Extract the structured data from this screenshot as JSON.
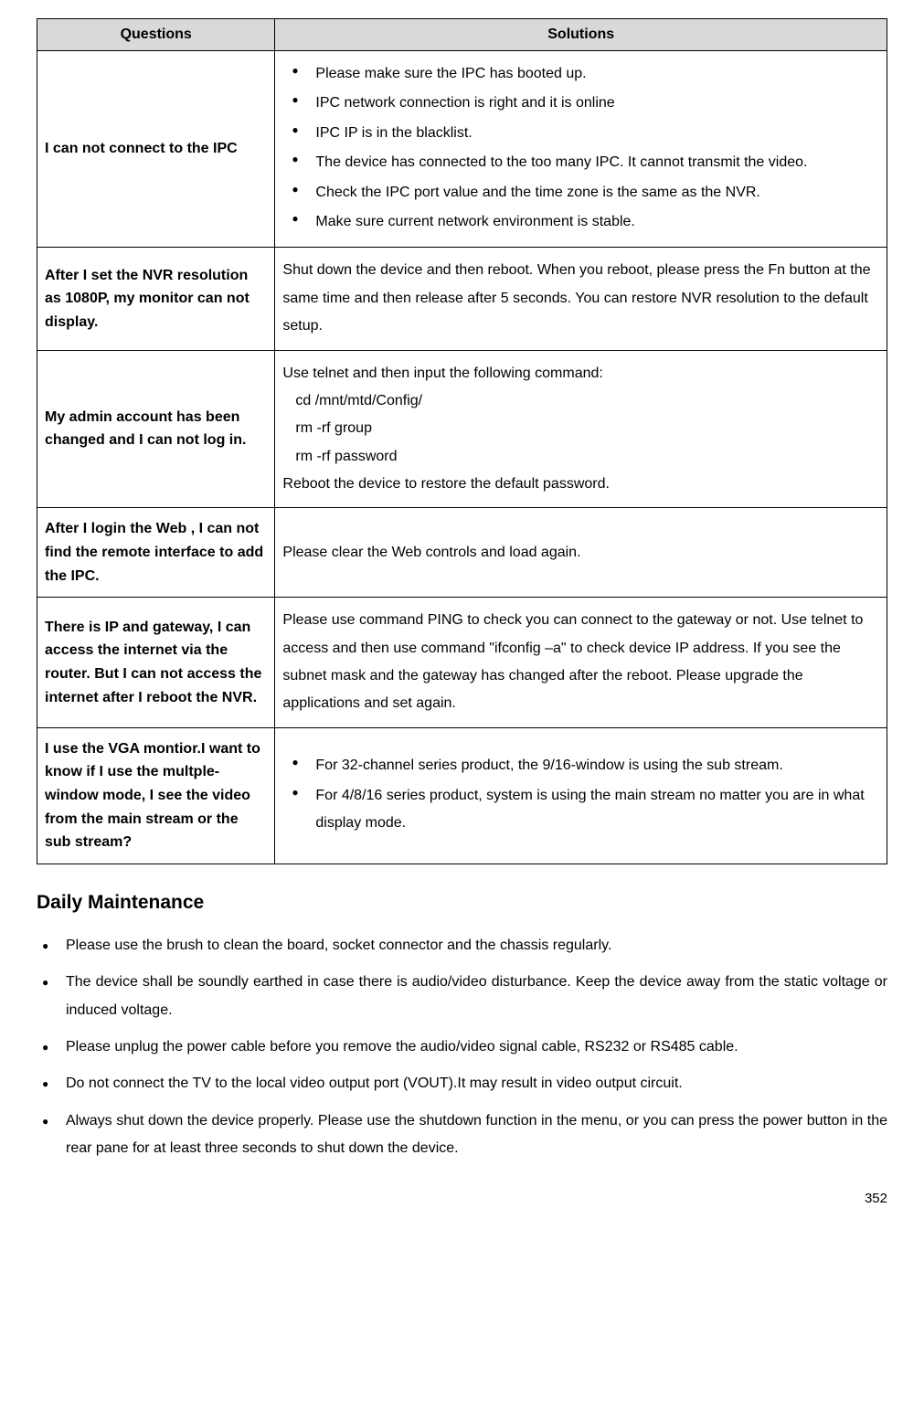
{
  "table": {
    "headers": {
      "questions": "Questions",
      "solutions": "Solutions"
    },
    "rows": [
      {
        "question": "I can not connect to the IPC",
        "solution_type": "list",
        "solution_items": [
          "Please make sure the IPC has booted up.",
          "IPC network connection is right and it is online",
          "IPC IP is in the blacklist.",
          "The device has connected to the too many IPC. It cannot transmit the video.",
          "Check the IPC port value and the time zone is the same as the NVR.",
          "Make sure current network environment is stable."
        ]
      },
      {
        "question": "After I set the NVR resolution as 1080P, my monitor can not display.",
        "solution_type": "text",
        "solution_text": "Shut down the device and then reboot. When you reboot, please press the Fn button at the same time and then release after 5 seconds. You can restore NVR resolution to the default setup."
      },
      {
        "question": "My admin account has been changed and I can not log in.",
        "solution_type": "command",
        "solution_intro": "Use telnet and then input the following command:",
        "solution_commands": [
          "cd /mnt/mtd/Config/",
          "rm -rf group",
          "rm -rf password"
        ],
        "solution_outro": "Reboot the device to restore the default password."
      },
      {
        "question": "After I login the Web , I can not find the remote interface to add the IPC.",
        "solution_type": "text",
        "solution_text": "Please clear the Web controls and load again."
      },
      {
        "question": "There is IP and gateway, I can access the internet via the router. But I can not access the internet after I reboot the NVR.",
        "solution_type": "text",
        "solution_text": "Please use command PING to check you can connect to the gateway or not. Use telnet to access and then use command \"ifconfig –a\" to check device IP address. If you see the subnet mask and the gateway has changed after the reboot. Please upgrade the applications and set again."
      },
      {
        "question": "I use the VGA montior.I want to know if I use the multple-window mode, I see the video from the main stream or the sub stream?",
        "solution_type": "list",
        "solution_items": [
          "For 32-channel series product, the 9/16-window is using the sub stream.",
          "For 4/8/16 series product, system is using the main stream no matter you are in what display mode."
        ]
      }
    ]
  },
  "maintenance": {
    "title": "Daily Maintenance",
    "items": [
      "Please use the brush to clean the board, socket connector and the chassis regularly.",
      "The device shall be soundly earthed in case there is audio/video disturbance. Keep the device away from the static voltage or induced voltage.",
      "Please unplug the power cable before you remove the audio/video signal cable, RS232 or RS485 cable.",
      "Do not connect the TV to the local video output port (VOUT).It may result in video output circuit.",
      "Always shut down the device properly. Please use the shutdown function in the menu, or you can press the power button in the rear pane for at least three seconds to shut down the device."
    ]
  },
  "page_number": "352"
}
